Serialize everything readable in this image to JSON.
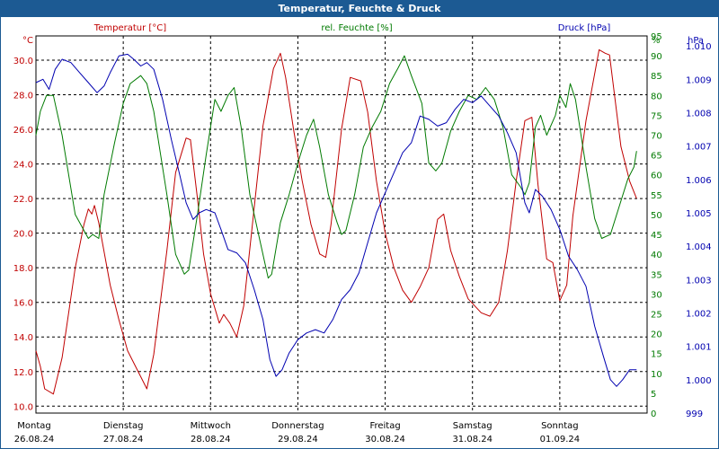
{
  "window_title": "Temperatur, Feuchte & Druck",
  "colors": {
    "temperature": "#c00000",
    "humidity": "#007a00",
    "pressure": "#0000b0",
    "titlebar": "#1c5a93",
    "grid": "#000000"
  },
  "chart_data": {
    "type": "line",
    "title": "Temperatur, Feuchte & Druck",
    "x_range_days": [
      0,
      7
    ],
    "day_labels": [
      {
        "day": "Montag",
        "date": "26.08.24"
      },
      {
        "day": "Dienstag",
        "date": "27.08.24"
      },
      {
        "day": "Mittwoch",
        "date": "28.08.24"
      },
      {
        "day": "Donnerstag",
        "date": "29.08.24"
      },
      {
        "day": "Freitag",
        "date": "30.08.24"
      },
      {
        "day": "Samstag",
        "date": "31.08.24"
      },
      {
        "day": "Sonntag",
        "date": "01.09.24"
      }
    ],
    "axes": {
      "temperature": {
        "label": "Temperatur [°C]",
        "unit": "°C",
        "range": [
          9.6,
          31.4
        ],
        "ticks": [
          "10.0",
          "12.0",
          "14.0",
          "16.0",
          "18.0",
          "20.0",
          "22.0",
          "24.0",
          "26.0",
          "28.0",
          "30.0"
        ]
      },
      "humidity": {
        "label": "rel. Feuchte [%]",
        "unit": "%",
        "range": [
          0,
          95
        ],
        "ticks": [
          "0",
          "5",
          "10",
          "15",
          "20",
          "25",
          "30",
          "35",
          "40",
          "45",
          "50",
          "55",
          "60",
          "65",
          "70",
          "75",
          "80",
          "85",
          "90",
          "95"
        ]
      },
      "pressure": {
        "label": "Druck [hPa]",
        "unit": "hPa",
        "range": [
          999,
          1010.3
        ],
        "ticks": [
          "999",
          "1.000",
          "1.001",
          "1.002",
          "1.003",
          "1.004",
          "1.005",
          "1.006",
          "1.007",
          "1.008",
          "1.009",
          "1.010"
        ]
      }
    },
    "series": [
      {
        "name": "Temperatur",
        "axis": "temperature",
        "points": [
          [
            0,
            13.2
          ],
          [
            0.05,
            12.3
          ],
          [
            0.1,
            11.0
          ],
          [
            0.2,
            10.7
          ],
          [
            0.3,
            12.8
          ],
          [
            0.45,
            18.0
          ],
          [
            0.55,
            20.5
          ],
          [
            0.6,
            21.4
          ],
          [
            0.64,
            21.1
          ],
          [
            0.67,
            21.6
          ],
          [
            0.72,
            20.6
          ],
          [
            0.85,
            17.0
          ],
          [
            0.95,
            15.0
          ],
          [
            1.05,
            13.2
          ],
          [
            1.2,
            11.7
          ],
          [
            1.27,
            11.0
          ],
          [
            1.35,
            13.0
          ],
          [
            1.5,
            19.0
          ],
          [
            1.6,
            23.5
          ],
          [
            1.72,
            25.5
          ],
          [
            1.77,
            25.4
          ],
          [
            1.85,
            22.0
          ],
          [
            1.92,
            18.8
          ],
          [
            2.0,
            16.5
          ],
          [
            2.1,
            14.8
          ],
          [
            2.15,
            15.3
          ],
          [
            2.22,
            14.8
          ],
          [
            2.3,
            14.0
          ],
          [
            2.38,
            15.8
          ],
          [
            2.5,
            21.5
          ],
          [
            2.6,
            26.2
          ],
          [
            2.72,
            29.5
          ],
          [
            2.8,
            30.4
          ],
          [
            2.86,
            29.0
          ],
          [
            2.95,
            26.0
          ],
          [
            3.05,
            23.0
          ],
          [
            3.15,
            20.5
          ],
          [
            3.25,
            18.8
          ],
          [
            3.32,
            18.6
          ],
          [
            3.38,
            20.5
          ],
          [
            3.5,
            26.0
          ],
          [
            3.6,
            29.0
          ],
          [
            3.72,
            28.8
          ],
          [
            3.8,
            27.0
          ],
          [
            3.9,
            23.0
          ],
          [
            4.0,
            20.0
          ],
          [
            4.1,
            18.0
          ],
          [
            4.2,
            16.7
          ],
          [
            4.3,
            16.0
          ],
          [
            4.4,
            16.9
          ],
          [
            4.5,
            18.0
          ],
          [
            4.6,
            20.8
          ],
          [
            4.67,
            21.1
          ],
          [
            4.75,
            19.0
          ],
          [
            4.85,
            17.5
          ],
          [
            4.95,
            16.2
          ],
          [
            5.1,
            15.4
          ],
          [
            5.2,
            15.2
          ],
          [
            5.3,
            16.0
          ],
          [
            5.4,
            19.0
          ],
          [
            5.5,
            23.0
          ],
          [
            5.6,
            26.5
          ],
          [
            5.68,
            26.7
          ],
          [
            5.75,
            22.8
          ],
          [
            5.85,
            18.5
          ],
          [
            5.92,
            18.3
          ],
          [
            6.0,
            16.1
          ],
          [
            6.08,
            17.0
          ],
          [
            6.15,
            21.0
          ],
          [
            6.3,
            26.5
          ],
          [
            6.45,
            30.6
          ],
          [
            6.52,
            30.4
          ],
          [
            6.57,
            30.3
          ],
          [
            6.7,
            25.0
          ],
          [
            6.8,
            23.0
          ],
          [
            6.88,
            22.0
          ]
        ]
      },
      {
        "name": "rel. Feuchte",
        "axis": "humidity",
        "points": [
          [
            0,
            70
          ],
          [
            0.05,
            76
          ],
          [
            0.12,
            80
          ],
          [
            0.2,
            80
          ],
          [
            0.3,
            70
          ],
          [
            0.45,
            50
          ],
          [
            0.55,
            46
          ],
          [
            0.6,
            44
          ],
          [
            0.65,
            45
          ],
          [
            0.72,
            44
          ],
          [
            0.78,
            55
          ],
          [
            0.9,
            68
          ],
          [
            1.0,
            78
          ],
          [
            1.08,
            83
          ],
          [
            1.2,
            85
          ],
          [
            1.27,
            83
          ],
          [
            1.35,
            76
          ],
          [
            1.5,
            55
          ],
          [
            1.6,
            40
          ],
          [
            1.7,
            35
          ],
          [
            1.75,
            36
          ],
          [
            1.85,
            50
          ],
          [
            1.95,
            65
          ],
          [
            2.05,
            79
          ],
          [
            2.12,
            76
          ],
          [
            2.2,
            80
          ],
          [
            2.27,
            82
          ],
          [
            2.35,
            72
          ],
          [
            2.45,
            55
          ],
          [
            2.55,
            45
          ],
          [
            2.62,
            38
          ],
          [
            2.66,
            34
          ],
          [
            2.7,
            35
          ],
          [
            2.8,
            48
          ],
          [
            2.9,
            55
          ],
          [
            3.0,
            63
          ],
          [
            3.1,
            70
          ],
          [
            3.18,
            74
          ],
          [
            3.25,
            67
          ],
          [
            3.35,
            55
          ],
          [
            3.45,
            48
          ],
          [
            3.5,
            45
          ],
          [
            3.55,
            46
          ],
          [
            3.65,
            55
          ],
          [
            3.75,
            67
          ],
          [
            3.85,
            72
          ],
          [
            3.95,
            76
          ],
          [
            4.05,
            83
          ],
          [
            4.15,
            87
          ],
          [
            4.22,
            90
          ],
          [
            4.3,
            85
          ],
          [
            4.42,
            78
          ],
          [
            4.5,
            63
          ],
          [
            4.58,
            61
          ],
          [
            4.65,
            63
          ],
          [
            4.75,
            71
          ],
          [
            4.85,
            76
          ],
          [
            4.95,
            80
          ],
          [
            5.05,
            79
          ],
          [
            5.15,
            82
          ],
          [
            5.25,
            79
          ],
          [
            5.35,
            72
          ],
          [
            5.45,
            60
          ],
          [
            5.55,
            57
          ],
          [
            5.6,
            55
          ],
          [
            5.65,
            58
          ],
          [
            5.72,
            72
          ],
          [
            5.78,
            75
          ],
          [
            5.85,
            70
          ],
          [
            5.95,
            75
          ],
          [
            6.0,
            80
          ],
          [
            6.07,
            77
          ],
          [
            6.12,
            83
          ],
          [
            6.18,
            79
          ],
          [
            6.3,
            62
          ],
          [
            6.4,
            49
          ],
          [
            6.48,
            44
          ],
          [
            6.58,
            45
          ],
          [
            6.68,
            52
          ],
          [
            6.78,
            59
          ],
          [
            6.85,
            62
          ],
          [
            6.88,
            66
          ]
        ]
      },
      {
        "name": "Druck",
        "axis": "pressure",
        "points": [
          [
            0,
            1008.9
          ],
          [
            0.08,
            1009.0
          ],
          [
            0.15,
            1008.7
          ],
          [
            0.22,
            1009.3
          ],
          [
            0.3,
            1009.6
          ],
          [
            0.4,
            1009.5
          ],
          [
            0.5,
            1009.2
          ],
          [
            0.6,
            1008.9
          ],
          [
            0.7,
            1008.6
          ],
          [
            0.78,
            1008.8
          ],
          [
            0.85,
            1009.2
          ],
          [
            0.95,
            1009.7
          ],
          [
            1.05,
            1009.75
          ],
          [
            1.12,
            1009.6
          ],
          [
            1.2,
            1009.4
          ],
          [
            1.27,
            1009.5
          ],
          [
            1.35,
            1009.3
          ],
          [
            1.45,
            1008.4
          ],
          [
            1.55,
            1007.2
          ],
          [
            1.65,
            1006.1
          ],
          [
            1.72,
            1005.3
          ],
          [
            1.8,
            1004.8
          ],
          [
            1.87,
            1005.0
          ],
          [
            1.95,
            1005.1
          ],
          [
            2.05,
            1005.0
          ],
          [
            2.12,
            1004.5
          ],
          [
            2.2,
            1003.9
          ],
          [
            2.3,
            1003.8
          ],
          [
            2.4,
            1003.5
          ],
          [
            2.5,
            1002.7
          ],
          [
            2.6,
            1001.8
          ],
          [
            2.68,
            1000.6
          ],
          [
            2.75,
            1000.1
          ],
          [
            2.82,
            1000.3
          ],
          [
            2.9,
            1000.8
          ],
          [
            3.0,
            1001.2
          ],
          [
            3.1,
            1001.4
          ],
          [
            3.2,
            1001.5
          ],
          [
            3.3,
            1001.4
          ],
          [
            3.4,
            1001.8
          ],
          [
            3.5,
            1002.4
          ],
          [
            3.6,
            1002.7
          ],
          [
            3.7,
            1003.2
          ],
          [
            3.8,
            1004.1
          ],
          [
            3.9,
            1005.0
          ],
          [
            4.0,
            1005.6
          ],
          [
            4.1,
            1006.2
          ],
          [
            4.2,
            1006.8
          ],
          [
            4.3,
            1007.1
          ],
          [
            4.4,
            1007.9
          ],
          [
            4.5,
            1007.8
          ],
          [
            4.6,
            1007.6
          ],
          [
            4.7,
            1007.7
          ],
          [
            4.8,
            1008.1
          ],
          [
            4.9,
            1008.4
          ],
          [
            5.0,
            1008.3
          ],
          [
            5.1,
            1008.5
          ],
          [
            5.2,
            1008.2
          ],
          [
            5.3,
            1007.9
          ],
          [
            5.4,
            1007.4
          ],
          [
            5.5,
            1006.8
          ],
          [
            5.6,
            1005.3
          ],
          [
            5.65,
            1005.0
          ],
          [
            5.72,
            1005.7
          ],
          [
            5.8,
            1005.5
          ],
          [
            5.9,
            1005.1
          ],
          [
            6.0,
            1004.5
          ],
          [
            6.1,
            1003.7
          ],
          [
            6.2,
            1003.3
          ],
          [
            6.3,
            1002.8
          ],
          [
            6.4,
            1001.6
          ],
          [
            6.5,
            1000.7
          ],
          [
            6.58,
            1000.0
          ],
          [
            6.65,
            999.8
          ],
          [
            6.72,
            1000.0
          ],
          [
            6.8,
            1000.3
          ],
          [
            6.88,
            1000.3
          ]
        ]
      }
    ]
  }
}
